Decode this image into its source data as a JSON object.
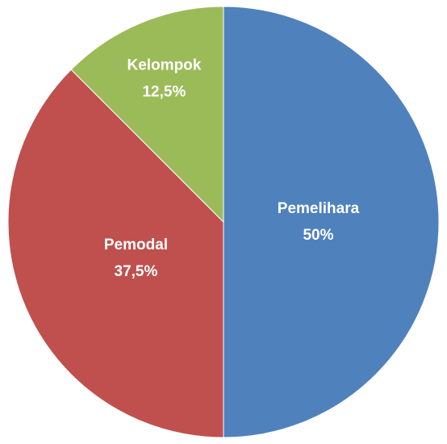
{
  "chart_data": {
    "type": "pie",
    "categories": [
      "Pemelihara",
      "Pemodal",
      "Kelompok"
    ],
    "values": [
      50,
      37.5,
      12.5
    ],
    "value_labels": [
      "50%",
      "37,5%",
      "12,5%"
    ],
    "colors": [
      "#4f81bd",
      "#c0504d",
      "#9bbb59"
    ]
  }
}
